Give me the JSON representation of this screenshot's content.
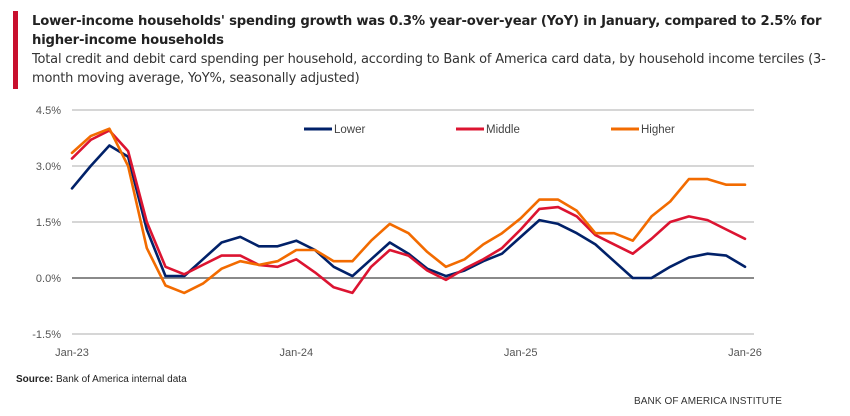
{
  "header": {
    "title": "Lower-income households' spending growth was 0.3% year-over-year (YoY) in January, compared to 2.5% for higher-income households",
    "subtitle": "Total credit and debit card spending per household, according to Bank of America card data, by household income terciles (3-month moving average, YoY%, seasonally adjusted)",
    "accent_color": "#c8102e"
  },
  "footer": {
    "source_label": "Source:",
    "source_text": " Bank of America internal data",
    "brand": "BANK OF AMERICA INSTITUTE"
  },
  "chart_data": {
    "type": "line",
    "title": "Total credit and debit card spending per household by household income terciles",
    "xlabel": "",
    "ylabel": "YoY%",
    "ylim": [
      -1.5,
      4.5
    ],
    "yticks": [
      4.5,
      3.0,
      1.5,
      0.0,
      -1.5
    ],
    "ytick_labels": [
      "4.5%",
      "3.0%",
      "1.5%",
      "0.0%",
      "-1.5%"
    ],
    "xtick_labels": [
      "Jan-23",
      "Jan-24",
      "Jan-25",
      "Jan-26"
    ],
    "xtick_indices": [
      0,
      12,
      24,
      36
    ],
    "grid": true,
    "legend_position": "top",
    "x": [
      "Jan-23",
      "Feb-23",
      "Mar-23",
      "Apr-23",
      "May-23",
      "Jun-23",
      "Jul-23",
      "Aug-23",
      "Sep-23",
      "Oct-23",
      "Nov-23",
      "Dec-23",
      "Jan-24",
      "Feb-24",
      "Mar-24",
      "Apr-24",
      "May-24",
      "Jun-24",
      "Jul-24",
      "Aug-24",
      "Sep-24",
      "Oct-24",
      "Nov-24",
      "Dec-24",
      "Jan-25",
      "Feb-25",
      "Mar-25",
      "Apr-25",
      "May-25",
      "Jun-25",
      "Jul-25",
      "Aug-25",
      "Sep-25",
      "Oct-25",
      "Nov-25",
      "Dec-25",
      "Jan-26"
    ],
    "series": [
      {
        "name": "Lower",
        "color": "#012169",
        "values": [
          2.4,
          3.0,
          3.55,
          3.25,
          1.3,
          0.05,
          0.05,
          0.5,
          0.95,
          1.1,
          0.85,
          0.85,
          1.0,
          0.75,
          0.3,
          0.05,
          0.5,
          0.95,
          0.65,
          0.25,
          0.05,
          0.2,
          0.45,
          0.65,
          1.1,
          1.55,
          1.45,
          1.2,
          0.9,
          0.45,
          0.0,
          0.0,
          0.3,
          0.55,
          0.65,
          0.6,
          0.3
        ]
      },
      {
        "name": "Middle",
        "color": "#dc1431",
        "values": [
          3.2,
          3.7,
          3.95,
          3.4,
          1.5,
          0.3,
          0.1,
          0.35,
          0.6,
          0.6,
          0.35,
          0.3,
          0.5,
          0.15,
          -0.25,
          -0.4,
          0.3,
          0.75,
          0.6,
          0.2,
          -0.05,
          0.25,
          0.5,
          0.8,
          1.3,
          1.85,
          1.9,
          1.65,
          1.15,
          0.9,
          0.65,
          1.05,
          1.5,
          1.65,
          1.55,
          1.3,
          1.05
        ]
      },
      {
        "name": "Higher",
        "color": "#f26b00",
        "values": [
          3.35,
          3.8,
          4.0,
          3.0,
          0.8,
          -0.2,
          -0.4,
          -0.15,
          0.25,
          0.45,
          0.35,
          0.45,
          0.75,
          0.75,
          0.45,
          0.45,
          1.0,
          1.45,
          1.2,
          0.7,
          0.3,
          0.5,
          0.9,
          1.2,
          1.6,
          2.1,
          2.1,
          1.8,
          1.2,
          1.2,
          1.0,
          1.65,
          2.05,
          2.65,
          2.65,
          2.5,
          2.5
        ]
      }
    ]
  }
}
